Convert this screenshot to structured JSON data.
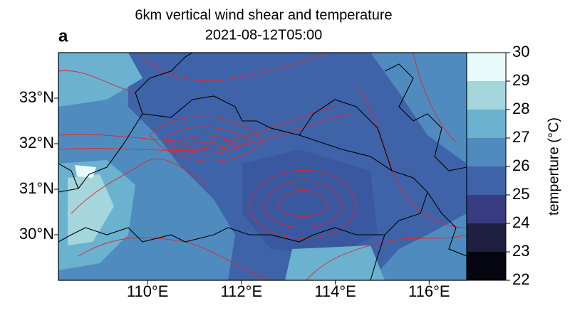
{
  "chart_data": {
    "type": "map",
    "title": "6km vertical wind shear and temperature",
    "subtitle": "2021-08-12T05:00",
    "panel_label": "a",
    "xlim": [
      108.1,
      116.8
    ],
    "ylim": [
      29.0,
      34.0
    ],
    "xticks": [
      {
        "value": 110,
        "label": "110°E"
      },
      {
        "value": 112,
        "label": "112°E"
      },
      {
        "value": 114,
        "label": "114°E"
      },
      {
        "value": 116,
        "label": "116°E"
      }
    ],
    "yticks": [
      {
        "value": 30,
        "label": "30°N"
      },
      {
        "value": 31,
        "label": "31°N"
      },
      {
        "value": 32,
        "label": "32°N"
      },
      {
        "value": 33,
        "label": "33°N"
      }
    ],
    "colorbar": {
      "label": "temperture (°C)",
      "lim": [
        22,
        30
      ],
      "ticks": [
        22,
        23,
        24,
        25,
        26,
        27,
        28,
        29,
        30
      ],
      "colors": [
        "#05060f",
        "#1f1f40",
        "#393c82",
        "#3f63a8",
        "#4f8bbf",
        "#6ab2cf",
        "#a4d6dc",
        "#e8fafa"
      ]
    }
  }
}
